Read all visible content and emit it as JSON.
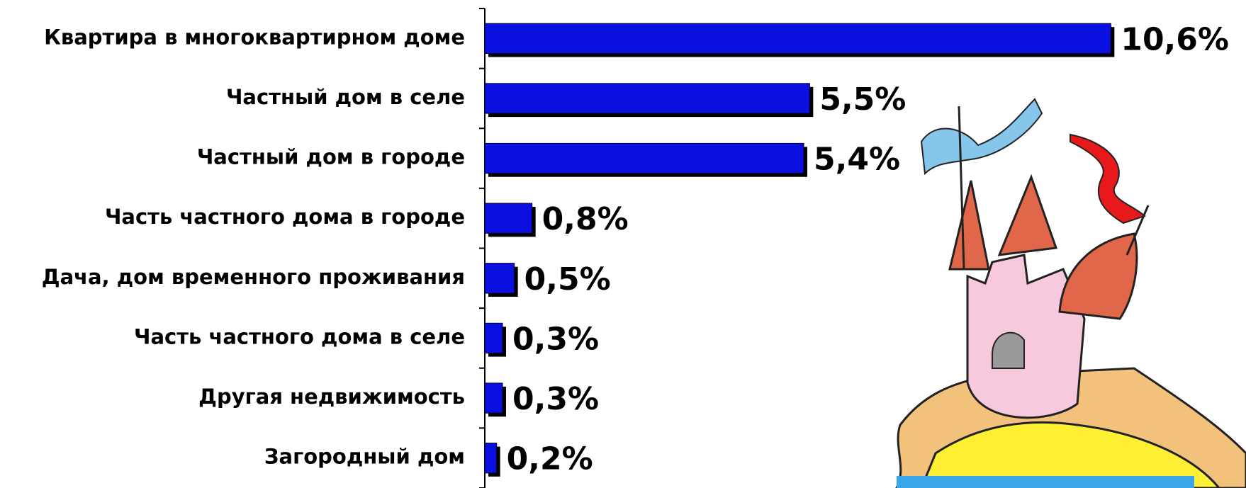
{
  "chart_data": {
    "type": "bar",
    "orientation": "horizontal",
    "categories": [
      "Квартира в многоквартирном доме",
      "Частный дом в селе",
      "Частный дом в городе",
      "Часть частного дома в городе",
      "Дача, дом временного проживания",
      "Часть частного дома в селе",
      "Другая недвижимость",
      "Загородный дом"
    ],
    "values": [
      10.6,
      5.5,
      5.4,
      0.8,
      0.5,
      0.3,
      0.3,
      0.2
    ],
    "value_labels": [
      "10,6%",
      "5,5%",
      "5,4%",
      "0,8%",
      "0,5%",
      "0,3%",
      "0,3%",
      "0,2%"
    ],
    "color": "#0a10e0",
    "xlim": [
      0,
      12
    ]
  }
}
